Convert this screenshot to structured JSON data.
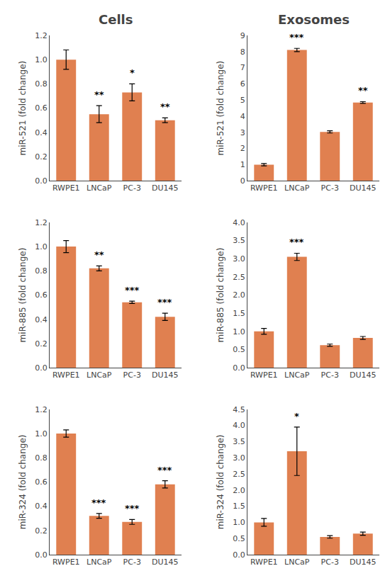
{
  "chart_data": [
    {
      "type": "bar",
      "title": "Cells",
      "categories": [
        "RWPE1",
        "LNCaP",
        "PC-3",
        "DU145"
      ],
      "values": [
        1.0,
        0.55,
        0.73,
        0.5
      ],
      "errors": [
        0.08,
        0.07,
        0.07,
        0.02
      ],
      "annotations": [
        {
          "category": "LNCaP",
          "text": "**"
        },
        {
          "category": "PC-3",
          "text": "*"
        },
        {
          "category": "DU145",
          "text": "**"
        }
      ],
      "color": "#E08050",
      "ylabel": "miR-521 (fold change)",
      "ylim": [
        0,
        1.2
      ],
      "yticks": [
        {
          "value": 0,
          "label": "0.0"
        },
        0.2,
        0.4,
        0.6,
        0.8,
        {
          "value": 1.0,
          "label": "1.0"
        },
        1.2
      ],
      "grid": false
    },
    {
      "type": "bar",
      "title": "Exosomes",
      "categories": [
        "RWPE1",
        "LNCaP",
        "PC-3",
        "DU145"
      ],
      "values": [
        1.0,
        8.1,
        3.03,
        4.85
      ],
      "errors": [
        0.07,
        0.1,
        0.07,
        0.05
      ],
      "annotations": [
        {
          "category": "LNCaP",
          "text": "***"
        },
        {
          "category": "DU145",
          "text": "**"
        }
      ],
      "color": "#E08050",
      "ylabel": "miR-521 (fold change)",
      "ylim": [
        0,
        9
      ],
      "yticks": [
        0,
        1,
        2,
        3,
        4,
        5,
        6,
        7,
        8,
        9
      ],
      "grid": false
    },
    {
      "type": "bar",
      "categories": [
        "RWPE1",
        "LNCaP",
        "PC-3",
        "DU145"
      ],
      "values": [
        1.0,
        0.82,
        0.54,
        0.42
      ],
      "errors": [
        0.05,
        0.02,
        0.01,
        0.03
      ],
      "annotations": [
        {
          "category": "LNCaP",
          "text": "**"
        },
        {
          "category": "PC-3",
          "text": "***"
        },
        {
          "category": "DU145",
          "text": "***"
        }
      ],
      "color": "#E08050",
      "ylabel": "miR-885 (fold change)",
      "ylim": [
        0,
        1.2
      ],
      "yticks": [
        {
          "value": 0,
          "label": "0.0"
        },
        0.2,
        0.4,
        0.6,
        0.8,
        {
          "value": 1.0,
          "label": "1.0"
        },
        1.2
      ],
      "grid": false
    },
    {
      "type": "bar",
      "categories": [
        "RWPE1",
        "LNCaP",
        "PC-3",
        "DU145"
      ],
      "values": [
        1.0,
        3.05,
        0.62,
        0.82
      ],
      "errors": [
        0.08,
        0.1,
        0.03,
        0.04
      ],
      "annotations": [
        {
          "category": "LNCaP",
          "text": "***"
        }
      ],
      "color": "#E08050",
      "ylabel": "miR-885 (fold change)",
      "ylim": [
        0,
        4
      ],
      "yticks": [
        {
          "value": 0,
          "label": "0.0"
        },
        0.5,
        {
          "value": 1.0,
          "label": "1.0"
        },
        1.5,
        {
          "value": 2.0,
          "label": "2.0"
        },
        2.5,
        {
          "value": 3.0,
          "label": "3.0"
        },
        3.5,
        {
          "value": 4.0,
          "label": "4.0"
        }
      ],
      "grid": false
    },
    {
      "type": "bar",
      "categories": [
        "RWPE1",
        "LNCaP",
        "PC-3",
        "DU145"
      ],
      "values": [
        1.0,
        0.32,
        0.27,
        0.58
      ],
      "errors": [
        0.03,
        0.02,
        0.02,
        0.03
      ],
      "annotations": [
        {
          "category": "LNCaP",
          "text": "***"
        },
        {
          "category": "PC-3",
          "text": "***"
        },
        {
          "category": "DU145",
          "text": "***"
        }
      ],
      "color": "#E08050",
      "ylabel": "miR-324 (fold change)",
      "ylim": [
        0,
        1.2
      ],
      "yticks": [
        {
          "value": 0,
          "label": "0.0"
        },
        0.2,
        0.4,
        0.6,
        0.8,
        {
          "value": 1.0,
          "label": "1.0"
        },
        1.2
      ],
      "grid": false
    },
    {
      "type": "bar",
      "categories": [
        "RWPE1",
        "LNCaP",
        "PC-3",
        "DU145"
      ],
      "values": [
        1.0,
        3.2,
        0.55,
        0.65
      ],
      "errors": [
        0.12,
        0.75,
        0.04,
        0.05
      ],
      "annotations": [
        {
          "category": "LNCaP",
          "text": "*"
        }
      ],
      "color": "#E08050",
      "ylabel": "miR-324 (fold change)",
      "ylim": [
        0,
        4.5
      ],
      "yticks": [
        {
          "value": 0,
          "label": "0.0"
        },
        0.5,
        {
          "value": 1.0,
          "label": "1.0"
        },
        1.5,
        {
          "value": 2.0,
          "label": "2.0"
        },
        2.5,
        {
          "value": 3.0,
          "label": "3.0"
        },
        3.5,
        {
          "value": 4.0,
          "label": "4.0"
        },
        4.5
      ],
      "grid": false
    }
  ]
}
